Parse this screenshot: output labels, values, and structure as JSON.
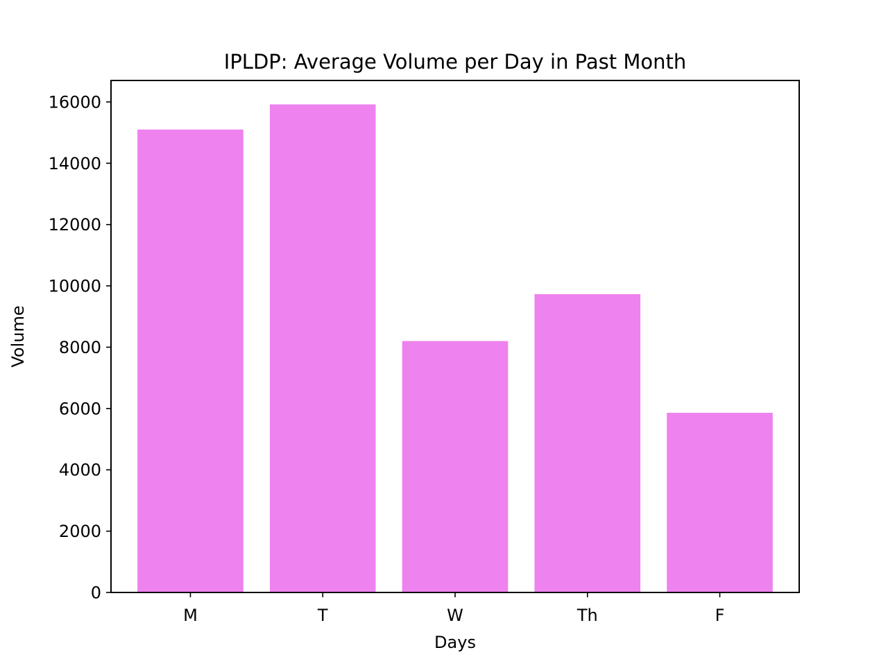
{
  "chart_data": {
    "type": "bar",
    "title": "IPLDP: Average Volume per Day in Past Month",
    "xlabel": "Days",
    "ylabel": "Volume",
    "categories": [
      "M",
      "T",
      "W",
      "Th",
      "F"
    ],
    "values": [
      15100,
      15920,
      8200,
      9730,
      5860
    ],
    "ylim": [
      0,
      16700
    ],
    "yticks": [
      0,
      2000,
      4000,
      6000,
      8000,
      10000,
      12000,
      14000,
      16000
    ],
    "grid": false,
    "legend": "none",
    "bar_color": "#ee82ee"
  }
}
